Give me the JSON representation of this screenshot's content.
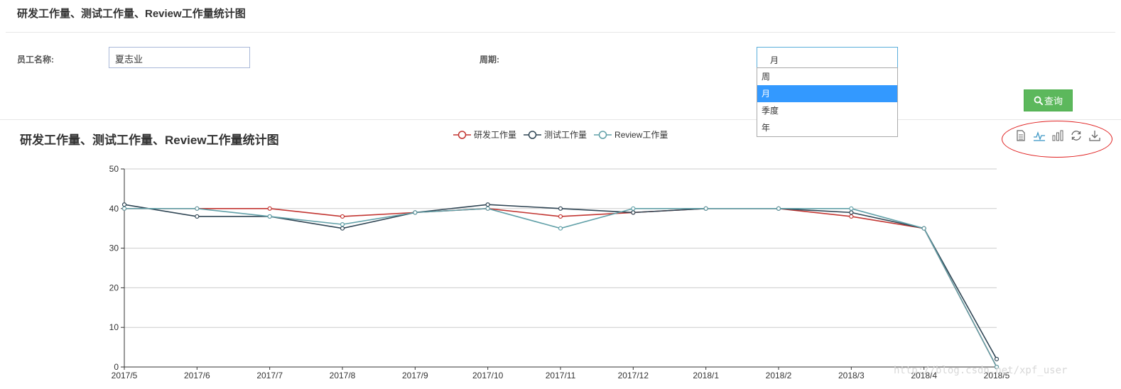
{
  "page": {
    "title": "研发工作量、测试工作量、Review工作量统计图"
  },
  "form": {
    "employee_label": "员工名称:",
    "employee_value": "夏志业",
    "period_label": "周期:",
    "period_selected": "月",
    "period_options": [
      "周",
      "月",
      "季度",
      "年"
    ],
    "query_label": "查询"
  },
  "chart_data": {
    "type": "line",
    "title": "研发工作量、测试工作量、Review工作量统计图",
    "categories": [
      "2017/5",
      "2017/6",
      "2017/7",
      "2017/8",
      "2017/9",
      "2017/10",
      "2017/11",
      "2017/12",
      "2018/1",
      "2018/2",
      "2018/3",
      "2018/4",
      "2018/5"
    ],
    "ylim": [
      0,
      50
    ],
    "yticks": [
      0,
      10,
      20,
      30,
      40,
      50
    ],
    "grid": true,
    "legend": "top-center",
    "series": [
      {
        "name": "研发工作量",
        "color": "#c23531",
        "values": [
          40,
          40,
          40,
          38,
          39,
          40,
          38,
          39,
          40,
          40,
          38,
          35,
          0
        ]
      },
      {
        "name": "测试工作量",
        "color": "#2f4554",
        "values": [
          41,
          38,
          38,
          35,
          39,
          41,
          40,
          39,
          40,
          40,
          39,
          35,
          2
        ]
      },
      {
        "name": "Review工作量",
        "color": "#61a0a8",
        "values": [
          40,
          40,
          38,
          36,
          39,
          40,
          35,
          40,
          40,
          40,
          40,
          35,
          0
        ]
      }
    ]
  },
  "toolbox": {
    "icons": [
      "data-view-icon",
      "line-chart-icon",
      "bar-chart-icon",
      "restore-icon",
      "download-icon"
    ]
  },
  "watermark": "http://blog.csdn.net/xpf_user"
}
